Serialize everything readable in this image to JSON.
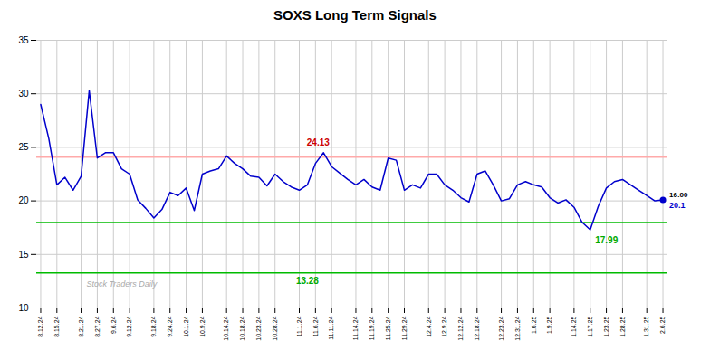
{
  "chart_data": {
    "type": "line",
    "title": "SOXS Long Term Signals",
    "categories": [
      "8.12.24",
      null,
      "8.15.24",
      null,
      null,
      "8.21.24",
      null,
      "8.27.24",
      null,
      "9.6.24",
      null,
      "9.12.24",
      null,
      null,
      "9.18.24",
      null,
      "9.24.24",
      null,
      "10.1.24",
      null,
      "10.9.24",
      null,
      null,
      "10.14.24",
      null,
      "10.18.24",
      null,
      "10.23.24",
      null,
      "10.28.24",
      null,
      null,
      "11.1.24",
      null,
      "11.6.24",
      null,
      "11.11.24",
      null,
      null,
      "11.14.24",
      null,
      "11.19.24",
      null,
      "11.25.24",
      null,
      "11.29.24",
      null,
      null,
      "12.4.24",
      null,
      "12.9.24",
      null,
      "12.12.24",
      null,
      "12.18.24",
      null,
      null,
      "12.23.24",
      null,
      "12.31.24",
      null,
      "1.6.25",
      null,
      "1.9.25",
      null,
      null,
      "1.14.25",
      null,
      "1.17.25",
      null,
      "1.23.25",
      null,
      "1.28.25",
      null,
      null,
      "1.31.25",
      null,
      "2.6.25"
    ],
    "values": [
      29.0,
      25.8,
      21.5,
      22.2,
      21.0,
      22.3,
      30.3,
      24.0,
      24.5,
      24.5,
      23.0,
      22.5,
      20.1,
      19.3,
      18.4,
      19.2,
      20.8,
      20.5,
      21.2,
      19.1,
      22.5,
      22.8,
      23.0,
      24.2,
      23.5,
      23.0,
      22.3,
      22.2,
      21.4,
      22.5,
      21.8,
      21.3,
      21.0,
      21.5,
      23.5,
      24.5,
      23.2,
      22.6,
      22.0,
      21.5,
      22.0,
      21.3,
      21.0,
      24.0,
      23.8,
      21.0,
      21.5,
      21.2,
      22.5,
      22.5,
      21.5,
      21.0,
      20.3,
      19.9,
      22.5,
      22.8,
      21.5,
      20.0,
      20.2,
      21.5,
      21.8,
      21.5,
      21.3,
      20.3,
      19.8,
      20.1,
      19.4,
      18.0,
      17.3,
      19.5,
      21.2,
      21.8,
      22.0,
      21.5,
      21.0,
      20.5,
      20.0,
      20.1
    ],
    "color": "#0000cc",
    "hlines": [
      {
        "y": 24.13,
        "color": "#ffaaaa"
      },
      {
        "y": 17.99,
        "color": "#00bb00"
      },
      {
        "y": 13.28,
        "color": "#00bb00"
      }
    ],
    "annotations": [
      {
        "text": "24.13",
        "color": "#cc0000",
        "x": 35,
        "y": 24.5
      },
      {
        "text": "17.99",
        "color": "#00aa00",
        "x": 68,
        "y": 17.3
      },
      {
        "text": "13.28",
        "color": "#00aa00",
        "y": 13.28
      },
      {
        "text": "16:00",
        "color": "#000000",
        "x": 77,
        "y": 20.1
      },
      {
        "text": "20.1",
        "color": "#0000cc",
        "x": 77,
        "y": 20.1
      }
    ],
    "watermark": {
      "text": "Stock Traders Daily",
      "color": "#aaaaaa"
    },
    "ylim": [
      10,
      35
    ],
    "yticks": [
      10,
      15,
      20,
      25,
      30,
      35
    ],
    "grid": true
  }
}
